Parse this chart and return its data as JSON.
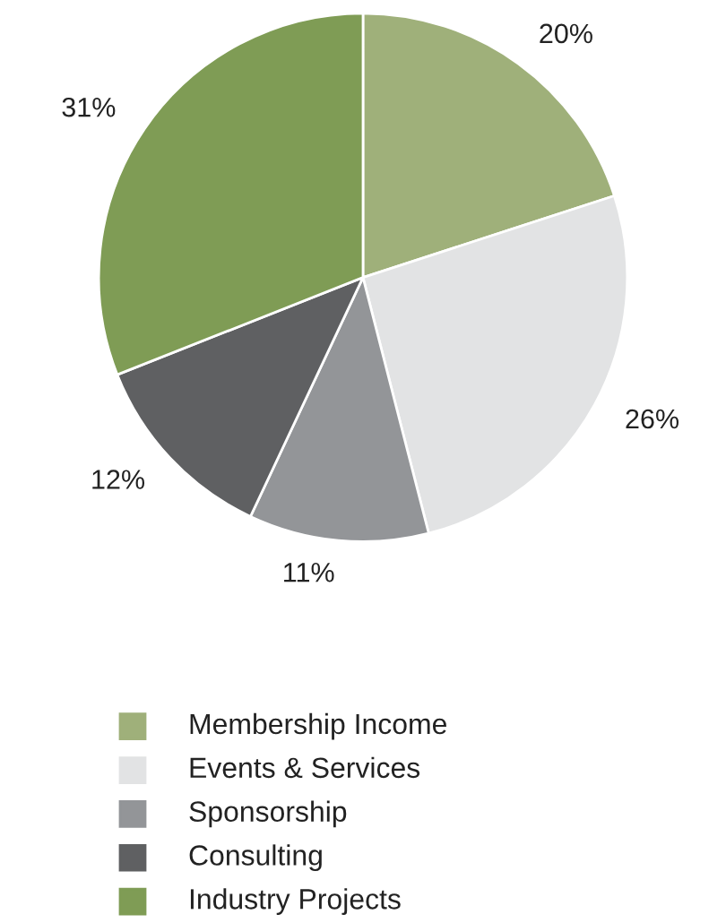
{
  "chart_data": {
    "type": "pie",
    "categories": [
      "Membership Income",
      "Events & Services",
      "Sponsorship",
      "Consulting",
      "Industry Projects"
    ],
    "values": [
      20,
      26,
      11,
      12,
      31
    ],
    "value_labels": [
      "20%",
      "26%",
      "11%",
      "12%",
      "31%"
    ],
    "colors": [
      "#9fb07a",
      "#e2e3e4",
      "#939598",
      "#5f6062",
      "#7f9c55"
    ],
    "legend": "bottom"
  }
}
